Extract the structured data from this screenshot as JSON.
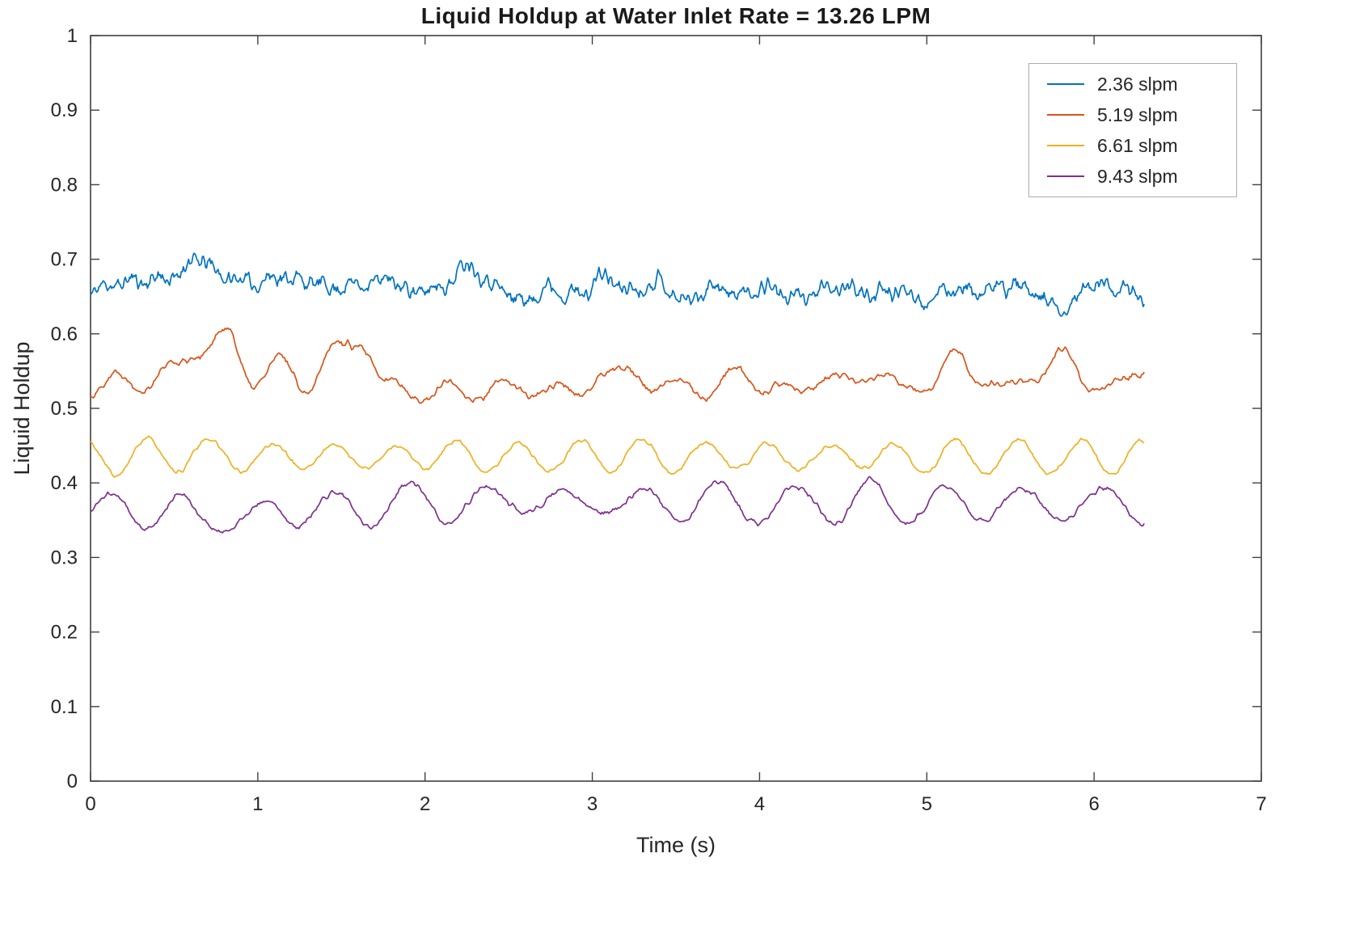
{
  "chart_data": {
    "type": "line",
    "title": "Liquid Holdup at Water Inlet Rate = 13.26 LPM",
    "xlabel": "Time (s)",
    "ylabel": "Liquid Holdup",
    "xlim": [
      0,
      7
    ],
    "ylim": [
      0,
      1
    ],
    "xticks": [
      0,
      1,
      2,
      3,
      4,
      5,
      6,
      7
    ],
    "yticks": [
      0,
      0.1,
      0.2,
      0.3,
      0.4,
      0.5,
      0.6,
      0.7,
      0.8,
      0.9,
      1
    ],
    "grid": false,
    "legend_position": "top-right",
    "axis_color": "#404040",
    "tick_label_color": "#262626",
    "series": [
      {
        "name": "2.36 slpm",
        "color": "#0072BD",
        "approx_mean": 0.66,
        "x_start": 0,
        "x_end": 6.3,
        "baseline": [
          0.656,
          0.668,
          0.672,
          0.676,
          0.7,
          0.676,
          0.668,
          0.678,
          0.67,
          0.662,
          0.668,
          0.672,
          0.656,
          0.664,
          0.694,
          0.664,
          0.644,
          0.662,
          0.652,
          0.676,
          0.658,
          0.67,
          0.644,
          0.664,
          0.652,
          0.664,
          0.648,
          0.656,
          0.662,
          0.652,
          0.658,
          0.646,
          0.662,
          0.654,
          0.666,
          0.65,
          0.628,
          0.666,
          0.662,
          0.648
        ],
        "osc_amp": 0.004,
        "osc_freq": 6.0,
        "noise_amp": 0.016,
        "seed": 11,
        "samples": 1000
      },
      {
        "name": "5.19 slpm",
        "color": "#D95319",
        "approx_mean": 0.535,
        "x_start": 0,
        "x_end": 6.3,
        "baseline": [
          0.524,
          0.54,
          0.534,
          0.552,
          0.58,
          0.598,
          0.54,
          0.558,
          0.534,
          0.576,
          0.592,
          0.528,
          0.52,
          0.526,
          0.518,
          0.53,
          0.522,
          0.528,
          0.52,
          0.544,
          0.552,
          0.526,
          0.534,
          0.522,
          0.548,
          0.528,
          0.52,
          0.544,
          0.53,
          0.552,
          0.524,
          0.534,
          0.566,
          0.54,
          0.526,
          0.548,
          0.572,
          0.53,
          0.528,
          0.552
        ],
        "osc_amp": 0.01,
        "osc_freq": 3.0,
        "noise_amp": 0.007,
        "seed": 22,
        "samples": 800
      },
      {
        "name": "6.61 slpm",
        "color": "#EDB120",
        "approx_mean": 0.435,
        "x_start": 0,
        "x_end": 6.3,
        "baseline": [
          0.436,
          0.432,
          0.438,
          0.434,
          0.44,
          0.436,
          0.432,
          0.436,
          0.434,
          0.438,
          0.436,
          0.432,
          0.436,
          0.44,
          0.434,
          0.436,
          0.432,
          0.438,
          0.434,
          0.436,
          0.438,
          0.432,
          0.436,
          0.434,
          0.438,
          0.436,
          0.432,
          0.436,
          0.438,
          0.434,
          0.436,
          0.432,
          0.438,
          0.434,
          0.436,
          0.438,
          0.432,
          0.436,
          0.434,
          0.436
        ],
        "osc_amp": 0.018,
        "osc_freq": 2.7,
        "noise_amp": 0.004,
        "seed": 33,
        "samples": 800
      },
      {
        "name": "9.43 slpm",
        "color": "#7E2F8E",
        "approx_mean": 0.37,
        "x_start": 0,
        "x_end": 6.3,
        "baseline": [
          0.362,
          0.368,
          0.358,
          0.366,
          0.352,
          0.36,
          0.344,
          0.362,
          0.37,
          0.36,
          0.366,
          0.372,
          0.374,
          0.368,
          0.376,
          0.372,
          0.38,
          0.374,
          0.372,
          0.378,
          0.37,
          0.374,
          0.372,
          0.378,
          0.374,
          0.372,
          0.368,
          0.374,
          0.372,
          0.378,
          0.372,
          0.374,
          0.37,
          0.372,
          0.374,
          0.37,
          0.368,
          0.372,
          0.378,
          0.364
        ],
        "osc_amp": 0.022,
        "osc_freq": 2.2,
        "noise_amp": 0.005,
        "seed": 44,
        "samples": 800
      }
    ]
  }
}
